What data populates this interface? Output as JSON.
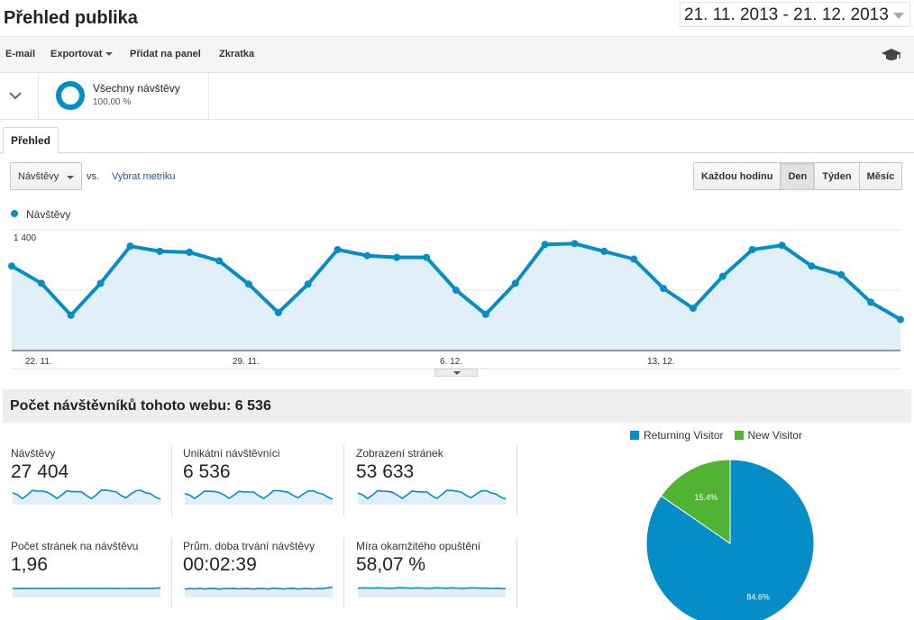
{
  "header": {
    "title": "Přehled publika",
    "date_range": "21. 11. 2013 - 21. 12. 2013"
  },
  "toolbar": {
    "email": "E-mail",
    "export": "Exportovat",
    "add_to_dashboard": "Přidat na panel",
    "shortcut": "Zkratka",
    "academy_icon": "graduation-cap-icon"
  },
  "segment": {
    "name": "Všechny návštěvy",
    "percent": "100,00 %"
  },
  "tab": {
    "label": "Přehled"
  },
  "controls": {
    "metric": "Návštěvy",
    "vs": "vs.",
    "select_metric": "Vybrat metriku",
    "granularity": [
      "Každou hodinu",
      "Den",
      "Týden",
      "Měsíc"
    ],
    "active_granularity": "Den"
  },
  "colors": {
    "series": "#058dc7",
    "series_fill": "#e1f0f8",
    "new_visitor": "#50b432"
  },
  "chart_data": [
    {
      "type": "line",
      "series": [
        {
          "name": "Návštěvy",
          "x": [
            "21. 11.",
            "22. 11.",
            "23. 11.",
            "24. 11.",
            "25. 11.",
            "26. 11.",
            "27. 11.",
            "28. 11.",
            "29. 11.",
            "30. 11.",
            "1. 12.",
            "2. 12.",
            "3. 12.",
            "4. 12.",
            "5. 12.",
            "6. 12.",
            "7. 12.",
            "8. 12.",
            "9. 12.",
            "10. 12.",
            "11. 12.",
            "12. 12.",
            "13. 12.",
            "14. 12.",
            "15. 12.",
            "16. 12.",
            "17. 12.",
            "18. 12.",
            "19. 12.",
            "20. 12.",
            "21. 12."
          ],
          "values": [
            980,
            780,
            410,
            780,
            1210,
            1150,
            1140,
            1040,
            770,
            440,
            770,
            1170,
            1100,
            1080,
            1080,
            700,
            420,
            780,
            1230,
            1240,
            1150,
            1060,
            720,
            490,
            860,
            1170,
            1220,
            980,
            880,
            560,
            360
          ]
        }
      ],
      "yticks": [
        "1 400",
        "700"
      ],
      "ylim": [
        0,
        1400
      ],
      "xtick_labels": [
        "22. 11.",
        "29. 11.",
        "6. 12.",
        "13. 12."
      ],
      "legend_position": "top-left",
      "grid": true
    },
    {
      "type": "pie",
      "categories": [
        "Returning Visitor",
        "New Visitor"
      ],
      "values": [
        84.6,
        15.4
      ],
      "labels": [
        "84.6%",
        "15.4%"
      ],
      "legend_position": "top"
    }
  ],
  "visitors": {
    "heading": "Počet návštěvníků tohoto webu: 6 536"
  },
  "tiles": [
    {
      "label": "Návštěvy",
      "value": "27 404",
      "spark": [
        980,
        780,
        410,
        780,
        1210,
        1150,
        1140,
        1040,
        770,
        440,
        770,
        1170,
        1100,
        1080,
        1080,
        700,
        420,
        780,
        1230,
        1240,
        1150,
        1060,
        720,
        490,
        860,
        1170,
        1220,
        980,
        880,
        560,
        360
      ]
    },
    {
      "label": "Unikátní návštěvníci",
      "value": "6 536",
      "spark": [
        900,
        760,
        420,
        760,
        1150,
        1120,
        1100,
        1000,
        760,
        450,
        760,
        1120,
        1070,
        1050,
        1050,
        700,
        430,
        760,
        1180,
        1190,
        1110,
        1020,
        720,
        500,
        840,
        1130,
        1170,
        960,
        860,
        560,
        380
      ]
    },
    {
      "label": "Zobrazení stránek",
      "value": "53 633",
      "spark": [
        950,
        760,
        420,
        770,
        1180,
        1130,
        1120,
        1020,
        760,
        450,
        770,
        1150,
        1080,
        1060,
        1060,
        700,
        430,
        780,
        1200,
        1210,
        1130,
        1040,
        720,
        500,
        850,
        1150,
        1200,
        970,
        870,
        560,
        370
      ]
    },
    {
      "label": "Počet stránek na návštěvu",
      "value": "1,96",
      "spark": [
        700,
        690,
        705,
        695,
        700,
        710,
        690,
        700,
        695,
        705,
        700,
        690,
        700,
        705,
        695,
        700,
        710,
        700,
        690,
        700,
        705,
        695,
        700,
        700,
        690,
        705,
        700,
        695,
        700,
        720,
        760
      ]
    },
    {
      "label": "Prům. doba trvání návštěvy",
      "value": "00:02:39",
      "spark": [
        640,
        700,
        660,
        720,
        650,
        690,
        710,
        640,
        700,
        680,
        720,
        650,
        700,
        690,
        640,
        710,
        680,
        650,
        730,
        690,
        650,
        700,
        720,
        640,
        700,
        690,
        660,
        710,
        680,
        760,
        820
      ]
    },
    {
      "label": "Míra okamžitého opuštění",
      "value": "58,07 %",
      "spark": [
        720,
        760,
        740,
        730,
        760,
        740,
        720,
        700,
        760,
        770,
        740,
        720,
        760,
        740,
        700,
        730,
        760,
        740,
        720,
        760,
        740,
        700,
        720,
        760,
        740,
        730,
        720,
        700,
        730,
        690,
        680
      ]
    }
  ]
}
